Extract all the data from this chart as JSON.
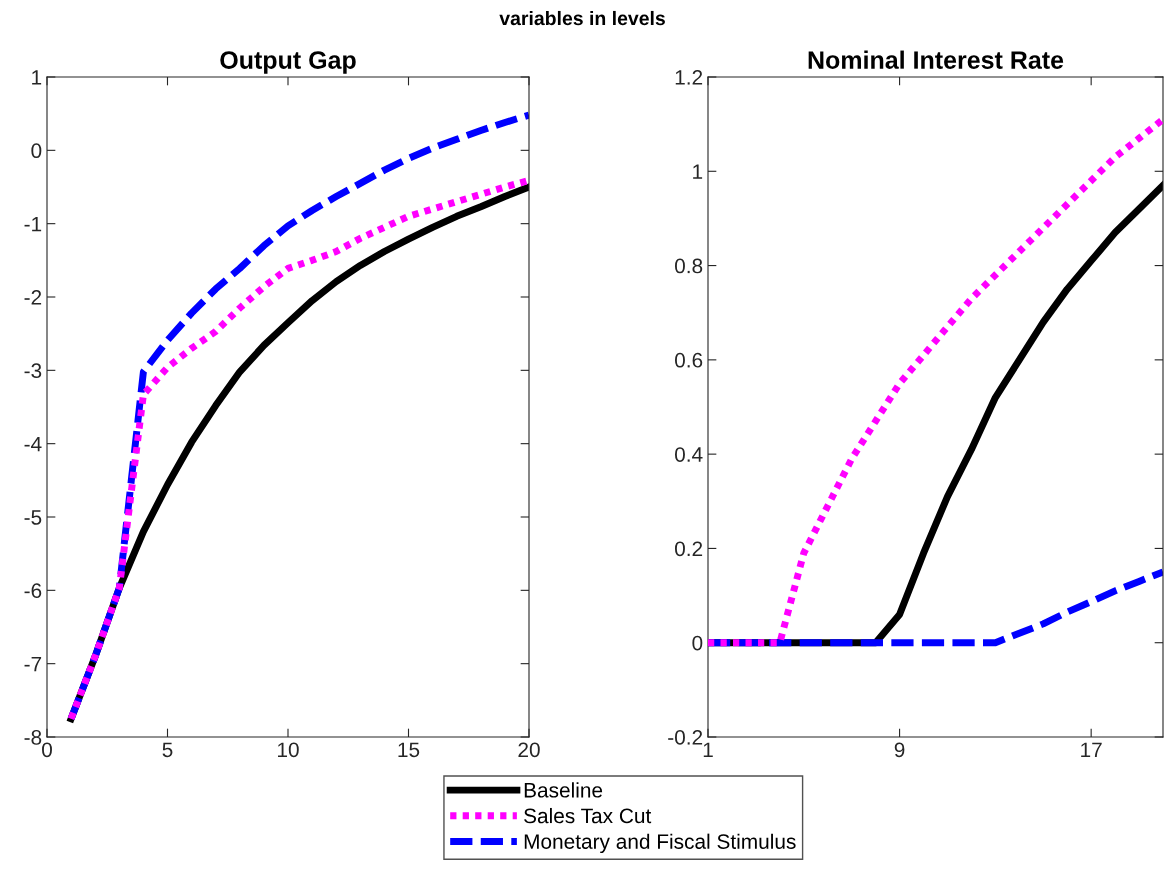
{
  "chart_data": [
    {
      "type": "line",
      "title": "Output Gap",
      "annotations": [
        "variables in levels"
      ],
      "x": [
        1,
        2,
        3,
        4,
        5,
        6,
        7,
        8,
        9,
        10,
        11,
        12,
        13,
        14,
        15,
        16,
        17,
        18,
        19,
        20
      ],
      "xlim": [
        0,
        20
      ],
      "xticks": [
        0,
        5,
        10,
        15,
        20
      ],
      "ylim": [
        -8,
        1
      ],
      "yticks": [
        -8,
        -7,
        -6,
        -5,
        -4,
        -3,
        -2,
        -1,
        0,
        1
      ],
      "grid": false,
      "legend": "bottom",
      "series": [
        {
          "name": "Baseline",
          "color": "#000000",
          "line_style": "solid",
          "values": [
            -7.75,
            -6.9,
            -5.97,
            -5.2,
            -4.56,
            -3.98,
            -3.48,
            -3.02,
            -2.66,
            -2.35,
            -2.05,
            -1.79,
            -1.57,
            -1.38,
            -1.21,
            -1.05,
            -0.9,
            -0.77,
            -0.63,
            -0.5
          ]
        },
        {
          "name": "Sales Tax Cut",
          "color": "#ff00ff",
          "line_style": "dotted",
          "values": [
            -7.75,
            -6.9,
            -5.97,
            -3.33,
            -2.96,
            -2.7,
            -2.47,
            -2.15,
            -1.86,
            -1.61,
            -1.5,
            -1.38,
            -1.2,
            -1.05,
            -0.9,
            -0.8,
            -0.7,
            -0.6,
            -0.5,
            -0.41
          ]
        },
        {
          "name": "Monetary and Fiscal Stimulus",
          "color": "#0000ff",
          "line_style": "dashed",
          "values": [
            -7.75,
            -6.9,
            -5.97,
            -3.02,
            -2.59,
            -2.22,
            -1.89,
            -1.61,
            -1.3,
            -1.03,
            -0.82,
            -0.63,
            -0.45,
            -0.27,
            -0.11,
            0.03,
            0.15,
            0.27,
            0.38,
            0.48
          ]
        }
      ]
    },
    {
      "type": "line",
      "title": "Nominal Interest Rate",
      "x": [
        1,
        2,
        3,
        4,
        5,
        6,
        7,
        8,
        9,
        10,
        11,
        12,
        13,
        14,
        15,
        16,
        17,
        18,
        19,
        20
      ],
      "xlim": [
        1,
        20
      ],
      "xticks": [
        1,
        9,
        17
      ],
      "ylim": [
        -0.2,
        1.2
      ],
      "yticks": [
        -0.2,
        0,
        0.2,
        0.4,
        0.6,
        0.8,
        1,
        1.2
      ],
      "grid": false,
      "series": [
        {
          "name": "Baseline",
          "color": "#000000",
          "line_style": "solid",
          "values": [
            0,
            0,
            0,
            0,
            0,
            0,
            0,
            0,
            0.06,
            0.19,
            0.31,
            0.41,
            0.52,
            0.6,
            0.68,
            0.75,
            0.81,
            0.87,
            0.92,
            0.97
          ]
        },
        {
          "name": "Sales Tax Cut",
          "color": "#ff00ff",
          "line_style": "dotted",
          "values": [
            0,
            0,
            0,
            0,
            0.19,
            0.29,
            0.39,
            0.47,
            0.55,
            0.61,
            0.67,
            0.73,
            0.78,
            0.83,
            0.88,
            0.93,
            0.98,
            1.03,
            1.07,
            1.11
          ]
        },
        {
          "name": "Monetary and Fiscal Stimulus",
          "color": "#0000ff",
          "line_style": "dashed",
          "values": [
            0,
            0,
            0,
            0,
            0,
            0,
            0,
            0,
            0,
            0,
            0,
            0,
            0,
            0.02,
            0.04,
            0.065,
            0.087,
            0.11,
            0.13,
            0.15
          ]
        }
      ]
    }
  ]
}
